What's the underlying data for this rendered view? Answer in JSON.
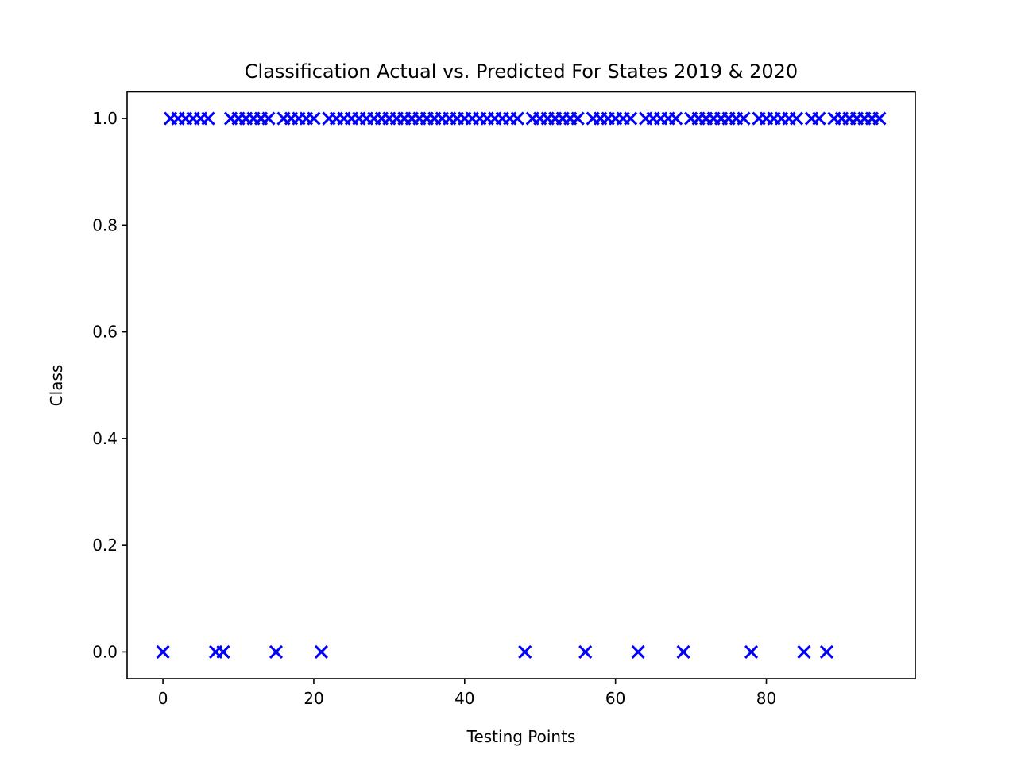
{
  "chart_data": {
    "type": "scatter",
    "title": "Classification Actual vs. Predicted For States 2019 & 2020",
    "xlabel": "Testing Points",
    "ylabel": "Class",
    "xlim": [
      -4.75,
      99.75
    ],
    "ylim": [
      -0.05,
      1.05
    ],
    "x_ticks": [
      0,
      20,
      40,
      60,
      80
    ],
    "x_tick_labels": [
      "0",
      "20",
      "40",
      "60",
      "80"
    ],
    "y_ticks": [
      0.0,
      0.2,
      0.4,
      0.6,
      0.8,
      1.0
    ],
    "y_tick_labels": [
      "0.0",
      "0.2",
      "0.4",
      "0.6",
      "0.8",
      "1.0"
    ],
    "grid": false,
    "legend": "none",
    "marker": "x",
    "color": "#0000ff",
    "series": [
      {
        "values_at_zero": [
          0,
          7,
          8,
          15,
          21,
          48,
          56,
          63,
          69,
          78,
          85,
          88
        ],
        "values_at_one": [
          1,
          2,
          3,
          4,
          5,
          6,
          9,
          10,
          11,
          12,
          13,
          14,
          16,
          17,
          18,
          19,
          20,
          22,
          23,
          24,
          25,
          26,
          27,
          28,
          29,
          30,
          31,
          32,
          33,
          34,
          35,
          36,
          37,
          38,
          39,
          40,
          41,
          42,
          43,
          44,
          45,
          46,
          47,
          49,
          50,
          51,
          52,
          53,
          54,
          55,
          57,
          58,
          59,
          60,
          61,
          62,
          64,
          65,
          66,
          67,
          68,
          70,
          71,
          72,
          73,
          74,
          75,
          76,
          77,
          79,
          80,
          81,
          82,
          83,
          84,
          86,
          87,
          89,
          90,
          91,
          92,
          93,
          94,
          95
        ]
      }
    ]
  }
}
